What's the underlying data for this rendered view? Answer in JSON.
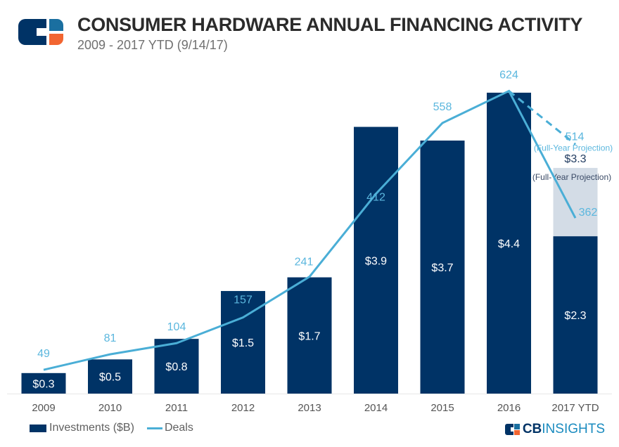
{
  "header": {
    "title": "CONSUMER HARDWARE ANNUAL FINANCING ACTIVITY",
    "subtitle": "2009 - 2017 YTD (9/14/17)"
  },
  "brand": {
    "logo_text": "CBINSIGHTS",
    "colors": {
      "navy": "#003366",
      "blue": "#1a6fa0",
      "orange": "#f26531"
    }
  },
  "chart_data": {
    "type": "bar+line",
    "categories": [
      "2009",
      "2010",
      "2011",
      "2012",
      "2013",
      "2014",
      "2015",
      "2016",
      "2017 YTD"
    ],
    "series": [
      {
        "name": "Investments ($B)",
        "type": "bar",
        "color": "#003366",
        "values": [
          0.3,
          0.5,
          0.8,
          1.5,
          1.7,
          3.9,
          3.7,
          4.4,
          2.3
        ],
        "labels": [
          "$0.3",
          "$0.5",
          "$0.8",
          "$1.5",
          "$1.7",
          "$3.9",
          "$3.7",
          "$4.4",
          "$2.3"
        ]
      },
      {
        "name": "Deals",
        "type": "line",
        "color": "#4aaed6",
        "values": [
          49,
          81,
          104,
          157,
          241,
          412,
          558,
          624,
          362
        ]
      }
    ],
    "projection": {
      "investments": {
        "value": 3.3,
        "label": "$3.3",
        "note": "(Full-Year Projection)",
        "color": "#d3dce6"
      },
      "deals": {
        "value": 514,
        "label": "514",
        "note": "(Full-Year Projection)",
        "style": "dashed"
      }
    },
    "legend_position": "bottom-left",
    "grid": false
  }
}
